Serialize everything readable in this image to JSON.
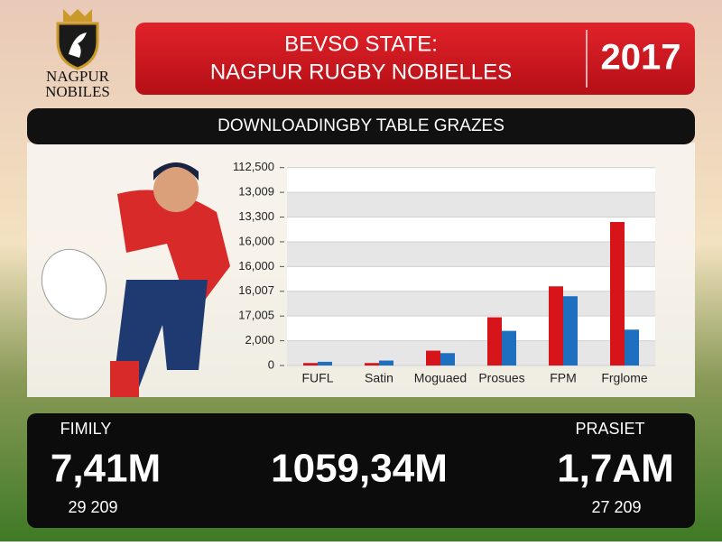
{
  "logo": {
    "line1": "NAGPUR",
    "line2": "NOBILES"
  },
  "header": {
    "title_line1": "BEVSO STATE:",
    "title_line2": "NAGPUR RUGBY NOBIELLES",
    "year": "2017"
  },
  "panel_title": "DOWNLOADINGBY TABLE GRAZES",
  "chart_data": {
    "type": "bar",
    "categories": [
      "FUFL",
      "Satin",
      "Moguaed",
      "Prosues",
      "FPM",
      "Frglome"
    ],
    "series": [
      {
        "color": "#d7141a",
        "values": [
          0.1,
          0.1,
          0.6,
          1.95,
          3.2,
          5.8
        ]
      },
      {
        "color": "#1f6fc0",
        "values": [
          0.15,
          0.2,
          0.5,
          1.4,
          2.8,
          1.45
        ]
      }
    ],
    "ylim": [
      0,
      8.5
    ],
    "yticks": [
      0,
      1,
      2,
      3,
      4,
      5,
      6,
      7,
      8
    ],
    "ytick_labels": [
      "0",
      "2,000",
      "17,005",
      "16,007",
      "16,000",
      "16,000",
      "13,300",
      "13,009",
      "112,500"
    ],
    "grid": true
  },
  "stats": [
    {
      "label": "FIMILY",
      "value": "7,41M",
      "sub": "29 209"
    },
    {
      "value": "1059,34M"
    },
    {
      "label": "PRASIET",
      "value": "1,7AM",
      "sub": "27 209"
    }
  ]
}
